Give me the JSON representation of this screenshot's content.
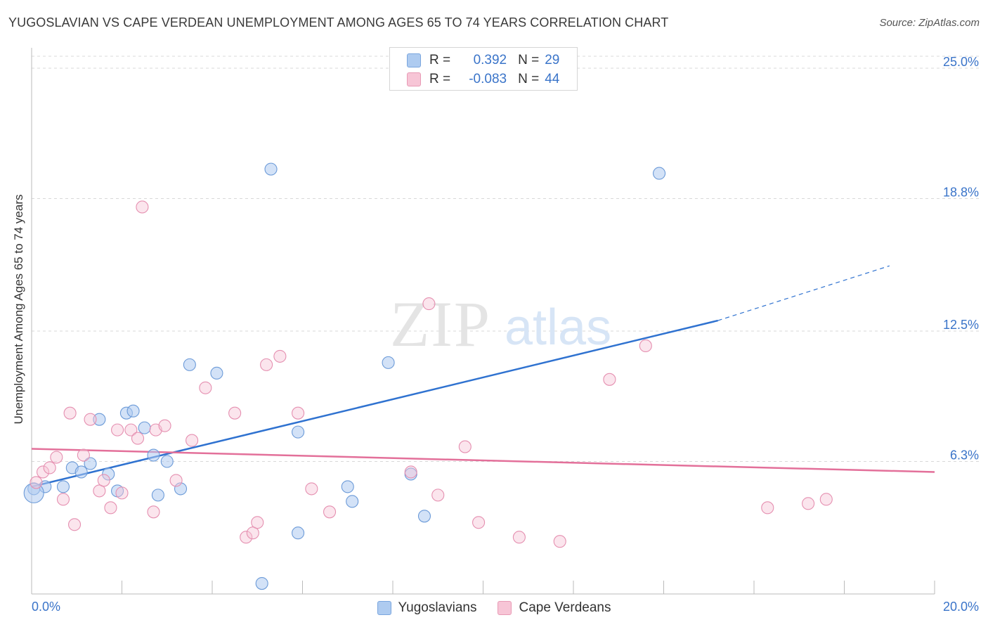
{
  "header": {
    "title": "YUGOSLAVIAN VS CAPE VERDEAN UNEMPLOYMENT AMONG AGES 65 TO 74 YEARS CORRELATION CHART",
    "source": "Source: ZipAtlas.com"
  },
  "watermark": {
    "zip": "ZIP",
    "atlas": "atlas"
  },
  "legend_top": {
    "rows": [
      {
        "r_label": "R =",
        "r_value": "0.392",
        "n_label": "N =",
        "n_value": "29",
        "color": "#aecbf0",
        "border": "#7aa6de"
      },
      {
        "r_label": "R =",
        "r_value": "-0.083",
        "n_label": "N =",
        "n_value": "44",
        "color": "#f7c5d6",
        "border": "#e89ab5"
      }
    ]
  },
  "legend_bottom": {
    "items": [
      {
        "label": "Yugoslavians",
        "color": "#aecbf0",
        "border": "#7aa6de"
      },
      {
        "label": "Cape Verdeans",
        "color": "#f7c5d6",
        "border": "#e89ab5"
      }
    ]
  },
  "chart_data": {
    "type": "scatter",
    "title": "YUGOSLAVIAN VS CAPE VERDEAN UNEMPLOYMENT AMONG AGES 65 TO 74 YEARS CORRELATION CHART",
    "xlabel": "",
    "ylabel": "Unemployment Among Ages 65 to 74 years",
    "xlim": [
      0,
      20
    ],
    "ylim": [
      0,
      25
    ],
    "x_tick_labels": [
      {
        "value": 0,
        "label": "0.0%"
      },
      {
        "value": 20,
        "label": "20.0%"
      }
    ],
    "y_tick_labels": [
      {
        "value": 6.3,
        "label": "6.3%"
      },
      {
        "value": 12.5,
        "label": "12.5%"
      },
      {
        "value": 18.8,
        "label": "18.8%"
      },
      {
        "value": 25.0,
        "label": "25.0%"
      }
    ],
    "grid": true,
    "colors": {
      "blue": "#3a74c9",
      "blue_line": "#2f72d0",
      "pink": "#e3709a",
      "blue_fill": "#aecbf0",
      "pink_fill": "#f7c5d6"
    },
    "series": [
      {
        "name": "Yugoslavians",
        "color": "blue",
        "points": [
          [
            0.05,
            5.0
          ],
          [
            0.3,
            5.1
          ],
          [
            0.7,
            5.1
          ],
          [
            0.9,
            6.0
          ],
          [
            1.1,
            5.8
          ],
          [
            1.3,
            6.2
          ],
          [
            1.5,
            8.3
          ],
          [
            1.7,
            5.7
          ],
          [
            1.9,
            4.9
          ],
          [
            2.1,
            8.6
          ],
          [
            2.25,
            8.7
          ],
          [
            2.5,
            7.9
          ],
          [
            2.7,
            6.6
          ],
          [
            2.8,
            4.7
          ],
          [
            3.0,
            6.3
          ],
          [
            3.3,
            5.0
          ],
          [
            3.5,
            10.9
          ],
          [
            4.1,
            10.5
          ],
          [
            5.3,
            20.2
          ],
          [
            5.1,
            0.5
          ],
          [
            5.9,
            7.7
          ],
          [
            5.9,
            2.9
          ],
          [
            7.0,
            5.1
          ],
          [
            7.1,
            4.4
          ],
          [
            7.9,
            11.0
          ],
          [
            8.4,
            5.7
          ],
          [
            8.7,
            3.7
          ],
          [
            13.9,
            20.0
          ],
          [
            0.05,
            4.8
          ]
        ],
        "trend": {
          "x0": 0.0,
          "y0": 5.1,
          "x1": 15.2,
          "y1": 13.0,
          "dash_x1": 19.0,
          "dash_y1": 15.6
        }
      },
      {
        "name": "Cape Verdeans",
        "color": "pink",
        "points": [
          [
            0.1,
            5.3
          ],
          [
            0.25,
            5.8
          ],
          [
            0.4,
            6.0
          ],
          [
            0.55,
            6.5
          ],
          [
            0.7,
            4.5
          ],
          [
            0.85,
            8.6
          ],
          [
            0.95,
            3.3
          ],
          [
            1.15,
            6.6
          ],
          [
            1.3,
            8.3
          ],
          [
            1.5,
            4.9
          ],
          [
            1.6,
            5.4
          ],
          [
            1.75,
            4.1
          ],
          [
            1.9,
            7.8
          ],
          [
            2.0,
            4.8
          ],
          [
            2.2,
            7.8
          ],
          [
            2.35,
            7.4
          ],
          [
            2.45,
            18.4
          ],
          [
            2.7,
            3.9
          ],
          [
            2.75,
            7.8
          ],
          [
            2.95,
            8.0
          ],
          [
            3.2,
            5.4
          ],
          [
            3.55,
            7.3
          ],
          [
            3.85,
            9.8
          ],
          [
            4.5,
            8.6
          ],
          [
            4.75,
            2.7
          ],
          [
            4.9,
            2.9
          ],
          [
            5.0,
            3.4
          ],
          [
            5.2,
            10.9
          ],
          [
            5.5,
            11.3
          ],
          [
            5.9,
            8.6
          ],
          [
            6.2,
            5.0
          ],
          [
            6.6,
            3.9
          ],
          [
            8.4,
            5.8
          ],
          [
            8.8,
            13.8
          ],
          [
            9.0,
            4.7
          ],
          [
            9.6,
            7.0
          ],
          [
            9.9,
            3.4
          ],
          [
            10.8,
            2.7
          ],
          [
            11.7,
            2.5
          ],
          [
            12.8,
            10.2
          ],
          [
            13.6,
            11.8
          ],
          [
            16.3,
            4.1
          ],
          [
            17.2,
            4.3
          ],
          [
            17.6,
            4.5
          ]
        ],
        "trend": {
          "x0": 0.0,
          "y0": 6.9,
          "x1": 20.0,
          "y1": 5.8
        }
      }
    ]
  }
}
